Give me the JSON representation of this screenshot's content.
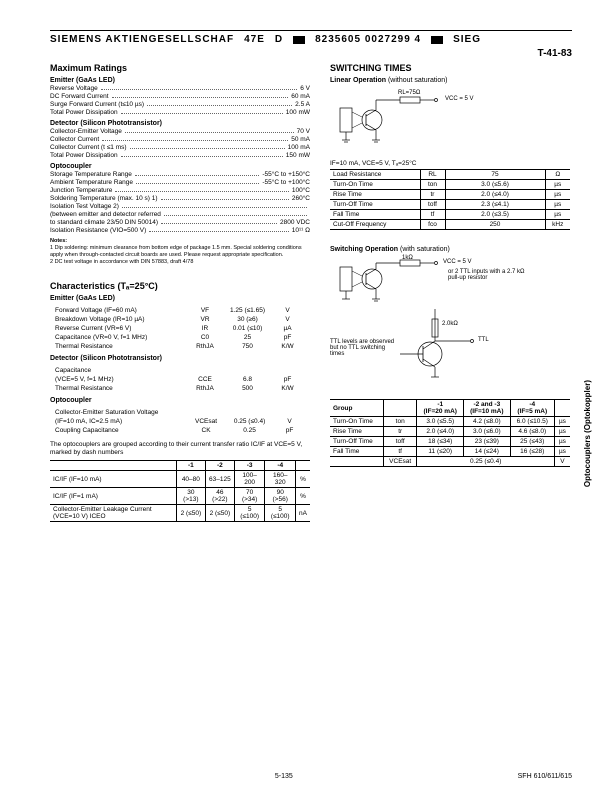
{
  "header": {
    "company": "SIEMENS AKTIENGESELLSCHAF",
    "code1": "47E",
    "code2": "D",
    "code3": "8235605 0027299 4",
    "code4": "SIEG",
    "corner": "T-41-83"
  },
  "vtab": "Optocouplers\n(Optokoppler)",
  "maxRatings": {
    "title": "Maximum Ratings",
    "emitter": {
      "title": "Emitter (GaAs LED)",
      "rows": [
        {
          "lbl": "Reverse Voltage",
          "val": "6 V"
        },
        {
          "lbl": "DC Forward Current",
          "val": "60 mA"
        },
        {
          "lbl": "Surge Forward Current (t≤10 µs)",
          "val": "2.5 A"
        },
        {
          "lbl": "Total Power Dissipation",
          "val": "100 mW"
        }
      ]
    },
    "detector": {
      "title": "Detector (Silicon Phototransistor)",
      "rows": [
        {
          "lbl": "Collector-Emitter Voltage",
          "val": "70 V"
        },
        {
          "lbl": "Collector Current",
          "val": "50 mA"
        },
        {
          "lbl": "Collector Current (t ≤1 ms)",
          "val": "100 mA"
        },
        {
          "lbl": "Total Power Dissipation",
          "val": "150 mW"
        }
      ]
    },
    "opto": {
      "title": "Optocoupler",
      "rows": [
        {
          "lbl": "Storage Temperature Range",
          "val": "-55°C to +150°C"
        },
        {
          "lbl": "Ambient Temperature Range",
          "val": "-55°C to +100°C"
        },
        {
          "lbl": "Junction Temperature",
          "val": "100°C"
        },
        {
          "lbl": "Soldering Temperature (max. 10 s) 1)",
          "val": "260°C"
        },
        {
          "lbl": "Isolation Test Voltage 2)",
          "val": ""
        },
        {
          "lbl": "(between emitter and detector referred",
          "val": ""
        },
        {
          "lbl": "to standard climate 23/50 DIN 50014)",
          "val": "2800 VDC"
        },
        {
          "lbl": "Isolation Resistance (VIO=500 V)",
          "val": "10¹¹ Ω"
        }
      ]
    },
    "notes": {
      "title": "Notes:",
      "n1": "1  Dip soldering: minimum clearance from bottom edge of package 1.5 mm. Special soldering conditions apply when through-contacted circuit boards are used. Please request appropriate specification.",
      "n2": "2  DC test voltage in accordance with DIN 57883, draft 4/78"
    }
  },
  "chars": {
    "title": "Characteristics (Tₐ=25°C)",
    "emitter": {
      "title": "Emitter (GaAs LED)",
      "rows": [
        [
          "Forward Voltage (IF=60 mA)",
          "VF",
          "1.25 (≤1.65)",
          "V"
        ],
        [
          "Breakdown Voltage (IR=10 µA)",
          "VR",
          "30 (≥6)",
          "V"
        ],
        [
          "Reverse Current (VR=6 V)",
          "IR",
          "0.01 (≤10)",
          "µA"
        ],
        [
          "Capacitance (VR=0 V, f=1 MHz)",
          "C0",
          "25",
          "pF"
        ],
        [
          "Thermal Resistance",
          "RthJA",
          "750",
          "K/W"
        ]
      ]
    },
    "detector": {
      "title": "Detector (Silicon Phototransistor)",
      "rows": [
        [
          "Capacitance",
          "",
          " ",
          " "
        ],
        [
          "(VCE=5 V, f=1 MHz)",
          "CCE",
          "6.8",
          "pF"
        ],
        [
          "Thermal Resistance",
          "RthJA",
          "500",
          "K/W"
        ]
      ]
    },
    "opto": {
      "title": "Optocoupler",
      "rows": [
        [
          "Collector-Emitter Saturation Voltage",
          "",
          "",
          ""
        ],
        [
          "(IF=10 mA, IC=2.5 mA)",
          "VCEsat",
          "0.25 (≤0.4)",
          "V"
        ],
        [
          "Coupling Capacitance",
          "CK",
          "0.25",
          "pF"
        ]
      ]
    }
  },
  "groupText": "The optocouplers are grouped according to their current transfer ratio IC/IF at VCE=5 V, marked by dash numbers",
  "groupTable": {
    "headers": [
      "",
      "-1",
      "-2",
      "-3",
      "-4",
      ""
    ],
    "rows": [
      [
        "IC/IF (IF=10 mA)",
        "40–80",
        "63–125",
        "100–200",
        "160–320",
        "%"
      ],
      [
        "IC/IF (IF=1 mA)",
        "30 (>13)",
        "46 (>22)",
        "70 (>34)",
        "90 (>56)",
        "%"
      ],
      [
        "Collector-Emitter Leakage Current (VCE=10 V) ICEO",
        "2 (≤50)",
        "2 (≤50)",
        "5 (≤100)",
        "5 (≤100)",
        "nA"
      ]
    ]
  },
  "switching": {
    "title": "SWITCHING TIMES",
    "linearTitle": "Linear Operation (without saturation)",
    "circuit1": {
      "r": "RL=75Ω",
      "v": "VCC = 5 V"
    },
    "cond": "IF=10 mA, VCE=5 V, Tₐ=25°C",
    "linearTable": [
      [
        "Load Resistance",
        "RL",
        "75",
        "Ω"
      ],
      [
        "Turn-On Time",
        "ton",
        "3.0 (≤5.6)",
        "µs"
      ],
      [
        "Rise Time",
        "tr",
        "2.0 (≤4.0)",
        "µs"
      ],
      [
        "Turn-Off Time",
        "toff",
        "2.3 (≤4.1)",
        "µs"
      ],
      [
        "Fall Time",
        "tf",
        "2.0 (≤3.5)",
        "µs"
      ],
      [
        "Cut-Off Frequency",
        "fco",
        "250",
        "kHz"
      ]
    ],
    "satTitle": "Switching Operation (with saturation)",
    "circuit2": {
      "r": "1kΩ",
      "v": "VCC = 5 V",
      "note1": "or 2 TTL inputs with a 2.7 kΩ pull-up resistor",
      "note2": "TTL levels are observed but no TTL switching times",
      "r2": "2.0kΩ",
      "out": "TTL"
    },
    "satTable": {
      "headers": [
        "Group",
        "",
        "-1 (IF=20 mA)",
        "-2 and -3 (IF=10 mA)",
        "-4 (IF=5 mA)",
        ""
      ],
      "rows": [
        [
          "Turn-On Time",
          "ton",
          "3.0 (≤5.5)",
          "4.2 (≤8.0)",
          "6.0 (≤10.5)",
          "µs"
        ],
        [
          "Rise Time",
          "tr",
          "2.0 (≤4.0)",
          "3.0 (≤6.0)",
          "4.6 (≤8.0)",
          "µs"
        ],
        [
          "Turn-Off Time",
          "toff",
          "18 (≤34)",
          "23 (≤39)",
          "25 (≤43)",
          "µs"
        ],
        [
          "Fall Time",
          "tf",
          "11 (≤20)",
          "14 (≤24)",
          "16 (≤28)",
          "µs"
        ],
        [
          "",
          "VCEsat",
          "",
          "0.25 (≤0.4)",
          "",
          "V"
        ]
      ]
    }
  },
  "footer": {
    "page": "5-135",
    "part": "SFH 610/611/615"
  }
}
